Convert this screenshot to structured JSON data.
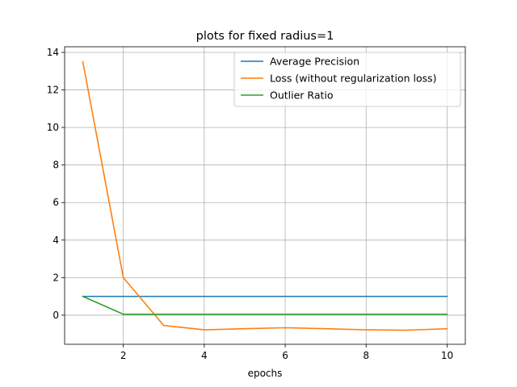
{
  "chart_data": {
    "type": "line",
    "title": "plots for fixed radius=1",
    "xlabel": "epochs",
    "ylabel": "",
    "x": [
      1,
      2,
      3,
      4,
      5,
      6,
      7,
      8,
      9,
      10
    ],
    "xlim": [
      0.55,
      10.45
    ],
    "ylim": [
      -1.55,
      14.3
    ],
    "xticks": [
      2,
      4,
      6,
      8,
      10
    ],
    "yticks": [
      0,
      2,
      4,
      6,
      8,
      10,
      12,
      14
    ],
    "grid": true,
    "legend_placement": "top-right",
    "series": [
      {
        "name": "Average Precision",
        "color": "#1f77b4",
        "values": [
          1.0,
          1.0,
          1.0,
          1.0,
          1.0,
          1.0,
          1.0,
          1.0,
          1.0,
          1.0
        ]
      },
      {
        "name": "Loss (without regularization loss)",
        "color": "#ff7f0e",
        "values": [
          13.5,
          2.0,
          -0.55,
          -0.78,
          -0.72,
          -0.67,
          -0.72,
          -0.78,
          -0.8,
          -0.72
        ]
      },
      {
        "name": "Outlier Ratio",
        "color": "#2ca02c",
        "values": [
          1.0,
          0.05,
          0.05,
          0.05,
          0.05,
          0.05,
          0.05,
          0.05,
          0.05,
          0.05
        ]
      }
    ]
  }
}
